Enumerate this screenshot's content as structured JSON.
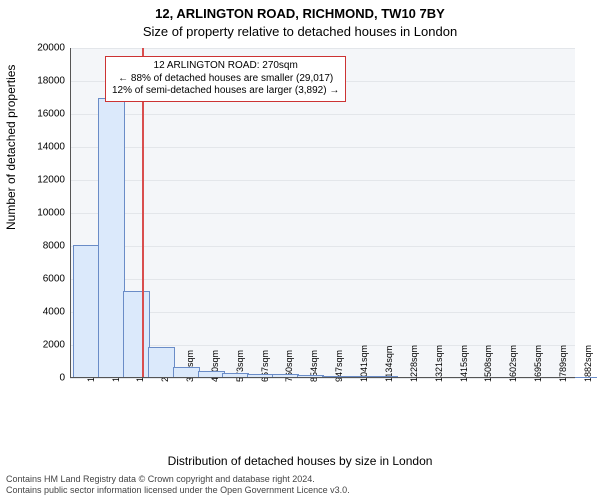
{
  "title_line1": "12, ARLINGTON ROAD, RICHMOND, TW10 7BY",
  "title_line2": "Size of property relative to detached houses in London",
  "y_axis_label": "Number of detached properties",
  "x_axis_label": "Distribution of detached houses by size in London",
  "footer_line1": "Contains HM Land Registry data © Crown copyright and database right 2024.",
  "footer_line2": "Contains public sector information licensed under the Open Government Licence v3.0.",
  "chart": {
    "type": "histogram",
    "background_color": "#f4f6f9",
    "grid_color": "#e3e6ea",
    "axis_color": "#555555",
    "bar_fill": "#dbe9fb",
    "bar_stroke": "#6a8cc7",
    "bar_width_ratio": 1.0,
    "ylim": [
      0,
      20000
    ],
    "ytick_step": 2000,
    "yticks": [
      0,
      2000,
      4000,
      6000,
      8000,
      10000,
      12000,
      14000,
      16000,
      18000,
      20000
    ],
    "xlim": [
      0,
      1900
    ],
    "xticks": [
      12,
      106,
      199,
      293,
      386,
      480,
      573,
      667,
      760,
      854,
      947,
      1041,
      1134,
      1228,
      1321,
      1415,
      1508,
      1602,
      1695,
      1789,
      1882
    ],
    "xtick_suffix": "sqm",
    "bars": [
      {
        "x": 12,
        "count": 8000
      },
      {
        "x": 106,
        "count": 16900
      },
      {
        "x": 199,
        "count": 5200
      },
      {
        "x": 293,
        "count": 1800
      },
      {
        "x": 386,
        "count": 600
      },
      {
        "x": 480,
        "count": 350
      },
      {
        "x": 573,
        "count": 250
      },
      {
        "x": 667,
        "count": 200
      },
      {
        "x": 760,
        "count": 180
      },
      {
        "x": 854,
        "count": 150
      },
      {
        "x": 947,
        "count": 90
      },
      {
        "x": 1041,
        "count": 60
      },
      {
        "x": 1134,
        "count": 40
      },
      {
        "x": 1228,
        "count": 30
      },
      {
        "x": 1321,
        "count": 20
      },
      {
        "x": 1415,
        "count": 15
      },
      {
        "x": 1508,
        "count": 10
      },
      {
        "x": 1602,
        "count": 10
      },
      {
        "x": 1695,
        "count": 5
      },
      {
        "x": 1789,
        "count": 5
      },
      {
        "x": 1882,
        "count": 5
      }
    ],
    "marker": {
      "x": 270,
      "color": "#d94e4e"
    },
    "annotation": {
      "border_color": "#cc3333",
      "lines": [
        "12 ARLINGTON ROAD: 270sqm",
        "← 88% of detached houses are smaller (29,017)",
        "12% of semi-detached houses are larger (3,892) →"
      ]
    }
  },
  "fonts": {
    "title_size_pt": 13,
    "subtitle_size_pt": 13,
    "axis_label_size_pt": 12,
    "tick_size_pt": 10,
    "annotation_size_pt": 10,
    "footer_size_pt": 9
  }
}
